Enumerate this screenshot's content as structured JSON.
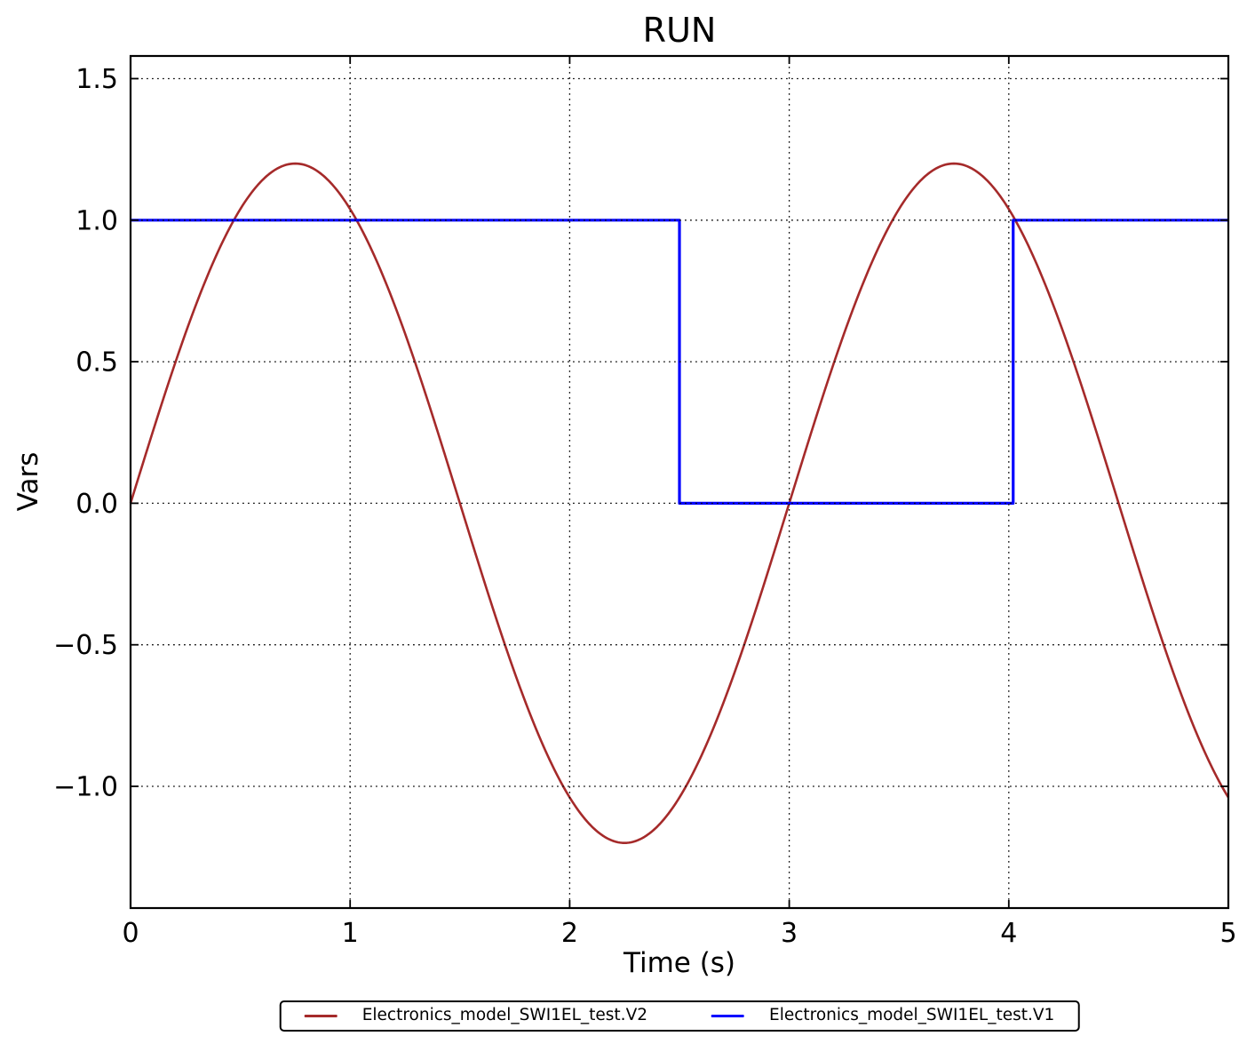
{
  "chart_data": {
    "type": "line",
    "title": "RUN",
    "xlabel": "Time (s)",
    "ylabel": "Vars",
    "xlim": [
      0,
      5
    ],
    "ylim": [
      -1.43,
      1.58
    ],
    "grid": "dotted",
    "background_color": "#ffffff",
    "axes_color": "#000000",
    "legend": {
      "position": "bottom-center",
      "ncol": 2,
      "border_color": "#000000"
    },
    "xticks": {
      "values": [
        0,
        1,
        2,
        3,
        4,
        5
      ],
      "labels": [
        "0",
        "1",
        "2",
        "3",
        "4",
        "5"
      ]
    },
    "yticks": {
      "values": [
        -1.0,
        -0.5,
        0.0,
        0.5,
        1.0,
        1.5
      ],
      "labels": [
        "−1.0",
        "−0.5",
        "0.0",
        "0.5",
        "1.0",
        "1.5"
      ]
    },
    "series": [
      {
        "name": "Electronics_model_SWI1EL_test.V2",
        "color": "#a52a2a",
        "line_width": 2.6,
        "shape": "sine",
        "function": "1.2*sin(2*pi*t/3)",
        "amplitude": 1.2,
        "period": 3,
        "phase": 0,
        "x_start": 0,
        "x_end": 5,
        "sample_points": {
          "x": [
            0,
            0.25,
            0.5,
            0.75,
            1.0,
            1.25,
            1.5,
            1.75,
            2.0,
            2.25,
            2.5,
            2.75,
            3.0,
            3.25,
            3.5,
            3.75,
            4.0,
            4.25,
            4.5,
            4.75,
            5.0
          ],
          "y": [
            0,
            0.6,
            1.039,
            1.2,
            1.039,
            0.6,
            0,
            -0.6,
            -1.039,
            -1.2,
            -1.039,
            -0.6,
            0,
            0.6,
            1.039,
            1.2,
            1.039,
            0.6,
            0,
            -0.6,
            -1.039
          ]
        }
      },
      {
        "name": "Electronics_model_SWI1EL_test.V1",
        "color": "#0000ff",
        "line_width": 3.2,
        "shape": "step",
        "points": [
          [
            0,
            1
          ],
          [
            2.5,
            1
          ],
          [
            2.5,
            0
          ],
          [
            4.02,
            0
          ],
          [
            4.02,
            1
          ],
          [
            5,
            1
          ]
        ]
      }
    ]
  }
}
